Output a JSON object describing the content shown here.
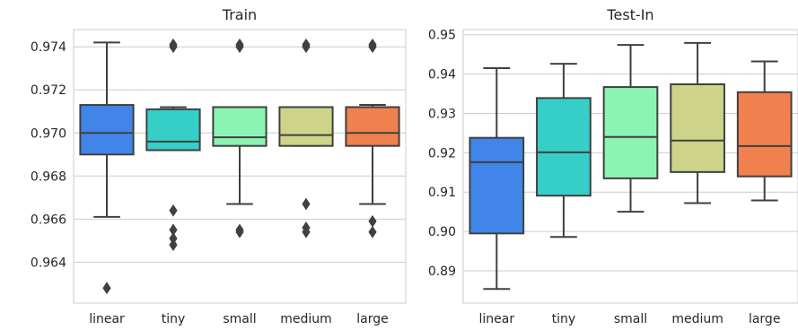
{
  "chart_data": [
    {
      "type": "box",
      "title": "Train",
      "categories": [
        "linear",
        "tiny",
        "small",
        "medium",
        "large"
      ],
      "yticks": [
        "0.964",
        "0.966",
        "0.968",
        "0.970",
        "0.972",
        "0.974"
      ],
      "ylim": [
        0.9621,
        0.9748
      ],
      "grid": true,
      "colors": [
        "#4285e8",
        "#35cfc8",
        "#8bf4b2",
        "#cdd48a",
        "#f0804e"
      ],
      "boxes": [
        {
          "category": "linear",
          "whisker_low": 0.9661,
          "q1": 0.969,
          "median": 0.97,
          "q3": 0.9713,
          "whisker_high": 0.9742,
          "outliers": [
            0.9628
          ]
        },
        {
          "category": "tiny",
          "whisker_low": 0.9692,
          "q1": 0.9692,
          "median": 0.9696,
          "q3": 0.9711,
          "whisker_high": 0.9712,
          "outliers": [
            0.9741,
            0.974,
            0.9664,
            0.9655,
            0.9651,
            0.9648
          ]
        },
        {
          "category": "small",
          "whisker_low": 0.9667,
          "q1": 0.9694,
          "median": 0.9698,
          "q3": 0.9712,
          "whisker_high": 0.9712,
          "outliers": [
            0.9741,
            0.974,
            0.9655,
            0.9654
          ]
        },
        {
          "category": "medium",
          "whisker_low": 0.9694,
          "q1": 0.9694,
          "median": 0.9699,
          "q3": 0.9712,
          "whisker_high": 0.9712,
          "outliers": [
            0.9741,
            0.974,
            0.9667,
            0.9656,
            0.9654
          ]
        },
        {
          "category": "large",
          "whisker_low": 0.9667,
          "q1": 0.9694,
          "median": 0.97,
          "q3": 0.9712,
          "whisker_high": 0.9713,
          "outliers": [
            0.9741,
            0.974,
            0.9659,
            0.9654
          ]
        }
      ]
    },
    {
      "type": "box",
      "title": "Test-In",
      "categories": [
        "linear",
        "tiny",
        "small",
        "medium",
        "large"
      ],
      "yticks": [
        "0.89",
        "0.90",
        "0.91",
        "0.92",
        "0.93",
        "0.94",
        "0.95"
      ],
      "ylim": [
        0.8818,
        0.9513
      ],
      "grid": true,
      "colors": [
        "#4285e8",
        "#35cfc8",
        "#8bf4b2",
        "#cdd48a",
        "#f0804e"
      ],
      "boxes": [
        {
          "category": "linear",
          "whisker_low": 0.8854,
          "q1": 0.8995,
          "median": 0.9176,
          "q3": 0.9238,
          "whisker_high": 0.9415,
          "outliers": []
        },
        {
          "category": "tiny",
          "whisker_low": 0.8986,
          "q1": 0.9091,
          "median": 0.9201,
          "q3": 0.9339,
          "whisker_high": 0.9426,
          "outliers": []
        },
        {
          "category": "small",
          "whisker_low": 0.905,
          "q1": 0.9135,
          "median": 0.924,
          "q3": 0.9367,
          "whisker_high": 0.9474,
          "outliers": []
        },
        {
          "category": "medium",
          "whisker_low": 0.9072,
          "q1": 0.9151,
          "median": 0.9231,
          "q3": 0.9374,
          "whisker_high": 0.9479,
          "outliers": []
        },
        {
          "category": "large",
          "whisker_low": 0.9079,
          "q1": 0.914,
          "median": 0.9217,
          "q3": 0.9354,
          "whisker_high": 0.9432,
          "outliers": []
        }
      ]
    }
  ]
}
